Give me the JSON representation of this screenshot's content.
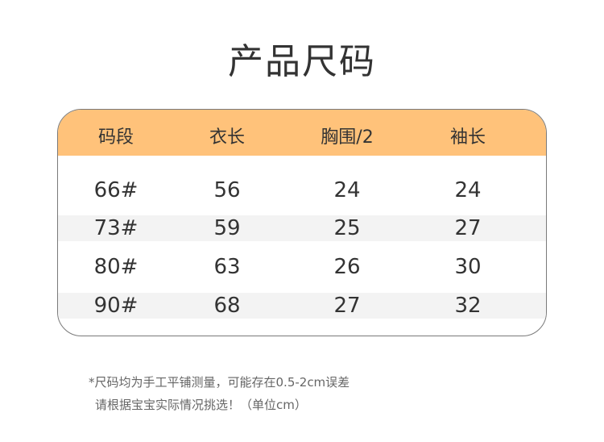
{
  "title": "产品尺码",
  "table": {
    "headers": [
      "码段",
      "衣长",
      "胸围/2",
      "袖长"
    ],
    "rows": [
      [
        "66#",
        "56",
        "24",
        "24"
      ],
      [
        "73#",
        "59",
        "25",
        "27"
      ],
      [
        "80#",
        "63",
        "26",
        "30"
      ],
      [
        "90#",
        "68",
        "27",
        "32"
      ]
    ]
  },
  "notes": [
    "*尺码均为手工平铺测量，可能存在0.5-2cm误差",
    "请根据宝宝实际情况挑选！（单位cm）"
  ],
  "colors": {
    "header": "#FFC27A",
    "stripe": "#F3F3F3"
  }
}
